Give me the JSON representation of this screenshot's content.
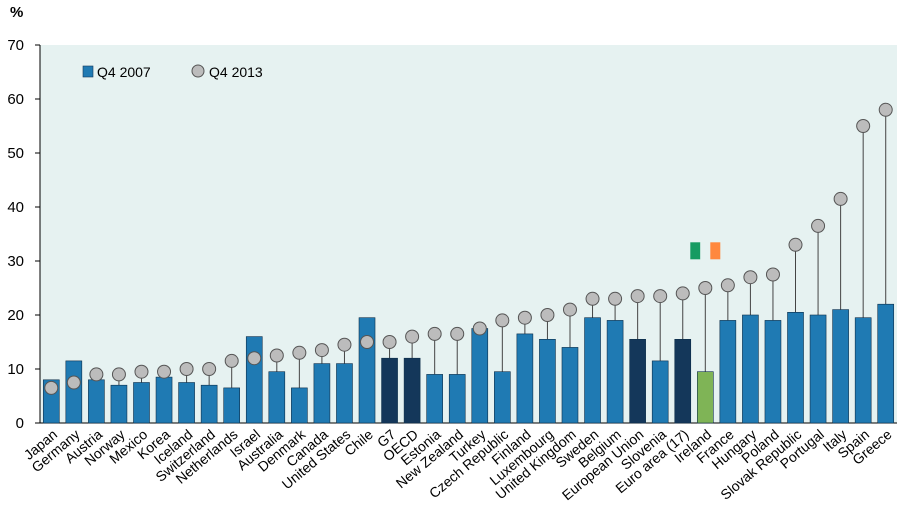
{
  "chart_data": {
    "type": "bar",
    "ylabel": "%",
    "ylim": [
      0,
      70
    ],
    "yticks": [
      0,
      10,
      20,
      30,
      40,
      50,
      60,
      70
    ],
    "grid": false,
    "legend_position": "top-left",
    "colors": {
      "plot_background": "#e6f2f1",
      "bar_default": "#1f7ab3",
      "bar_aggregate": "#14375a",
      "bar_highlight": "#7fb456",
      "marker_fill": "#bcbcbc",
      "marker_stroke": "#555555",
      "flag_green": "#169b62",
      "flag_orange": "#ff883e"
    },
    "categories": [
      "Japan",
      "Germany",
      "Austria",
      "Norway",
      "Mexico",
      "Korea",
      "Iceland",
      "Switzerland",
      "Netherlands",
      "Israel",
      "Australia",
      "Denmark",
      "Canada",
      "United States",
      "Chile",
      "G7",
      "OECD",
      "Estonia",
      "New Zealand",
      "Turkey",
      "Czech Republic",
      "Finland",
      "Luxembourg",
      "United Kingdom",
      "Sweden",
      "Belgium",
      "European Union",
      "Slovenia",
      "Euro area (17)",
      "Ireland",
      "France",
      "Hungary",
      "Poland",
      "Slovak Republic",
      "Portugal",
      "Italy",
      "Spain",
      "Greece"
    ],
    "bar_groups": [
      "default",
      "default",
      "default",
      "default",
      "default",
      "default",
      "default",
      "default",
      "default",
      "default",
      "default",
      "default",
      "default",
      "default",
      "default",
      "aggregate",
      "aggregate",
      "default",
      "default",
      "default",
      "default",
      "default",
      "default",
      "default",
      "default",
      "default",
      "aggregate",
      "default",
      "aggregate",
      "highlight",
      "default",
      "default",
      "default",
      "default",
      "default",
      "default",
      "default",
      "default"
    ],
    "series": [
      {
        "name": "Q4 2007",
        "kind": "bar",
        "values": [
          8,
          11.5,
          8,
          7,
          7.5,
          8.5,
          7.5,
          7,
          6.5,
          16,
          9.5,
          6.5,
          11,
          11,
          19.5,
          12,
          12,
          9,
          9,
          17.5,
          9.5,
          16.5,
          15.5,
          14,
          19.5,
          19,
          15.5,
          11.5,
          15.5,
          9.5,
          19,
          20,
          19,
          20.5,
          20,
          21,
          19.5,
          22
        ]
      },
      {
        "name": "Q4 2013",
        "kind": "marker",
        "values": [
          6.5,
          7.5,
          9,
          9,
          9.5,
          9.5,
          10,
          10,
          11.5,
          12,
          12.5,
          13,
          13.5,
          14.5,
          15,
          15,
          16,
          16.5,
          16.5,
          17.5,
          19,
          19.5,
          20,
          21,
          23,
          23,
          23.5,
          23.5,
          24,
          25,
          25.5,
          27,
          27.5,
          33,
          36.5,
          41.5,
          55,
          58
        ]
      }
    ]
  }
}
